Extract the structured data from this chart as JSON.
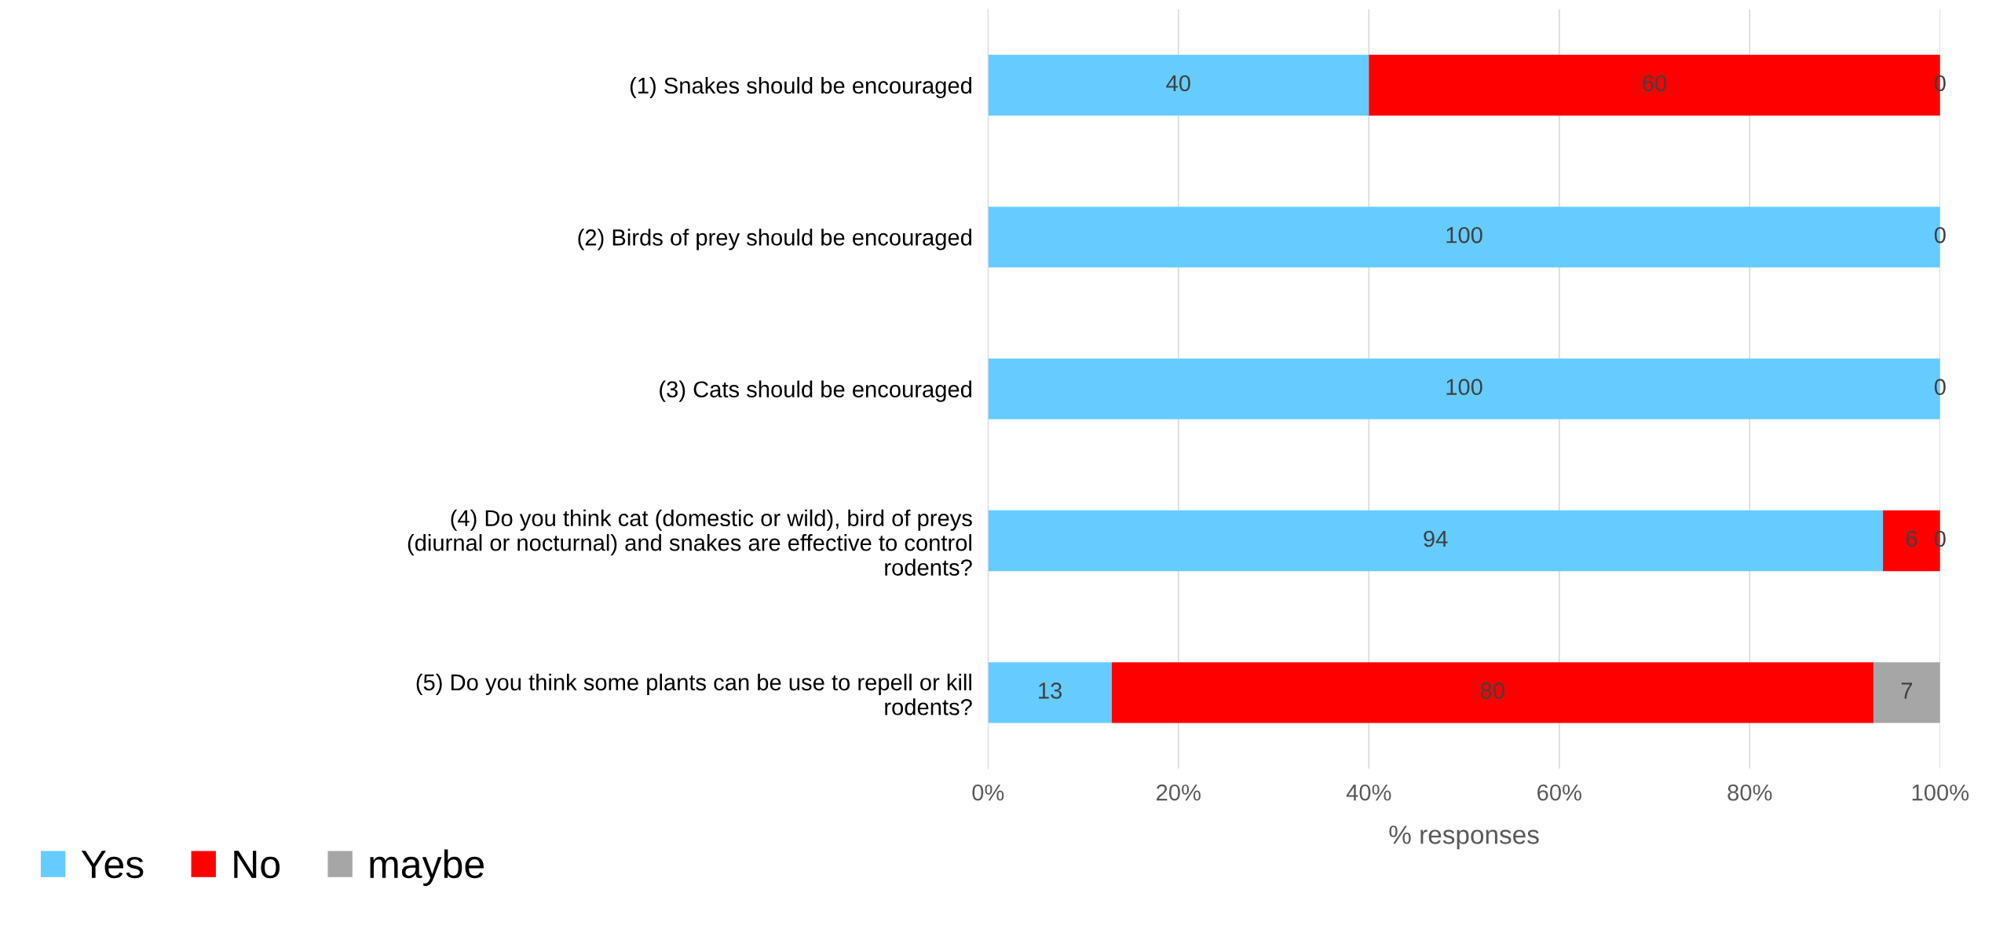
{
  "chart_data": {
    "type": "bar",
    "orientation": "horizontal",
    "stacked": true,
    "categories": [
      "(1) Snakes should be encouraged",
      "(2) Birds of prey should be encouraged",
      "(3) Cats should be encouraged",
      "(4) Do you think cat (domestic or wild), bird of preys (diurnal or nocturnal) and snakes are effective to control rodents?",
      "(5) Do you think some plants can be use to repell or kill rodents?"
    ],
    "series": [
      {
        "name": "Yes",
        "color": "#66ccff",
        "values": [
          40,
          100,
          100,
          94,
          13
        ],
        "value_labels": [
          "40",
          "100",
          "100",
          "94",
          "13"
        ]
      },
      {
        "name": "No",
        "color": "#ff0000",
        "values": [
          60,
          0,
          0,
          6,
          80
        ],
        "value_labels": [
          "60",
          null,
          null,
          "6",
          "80"
        ]
      },
      {
        "name": "maybe",
        "color": "#a6a6a6",
        "values": [
          0,
          0,
          0,
          0,
          7
        ],
        "value_labels": [
          "0",
          "0",
          "0",
          "0",
          "7"
        ]
      }
    ],
    "xlim": [
      0,
      100
    ],
    "xticks": [
      {
        "value": 0,
        "label": "0%"
      },
      {
        "value": 20,
        "label": "20%"
      },
      {
        "value": 40,
        "label": "40%"
      },
      {
        "value": 60,
        "label": "60%"
      },
      {
        "value": 80,
        "label": "80%"
      },
      {
        "value": 100,
        "label": "100%"
      }
    ],
    "xlabel": "% responses",
    "grid": "x",
    "legend": "bottom left"
  }
}
